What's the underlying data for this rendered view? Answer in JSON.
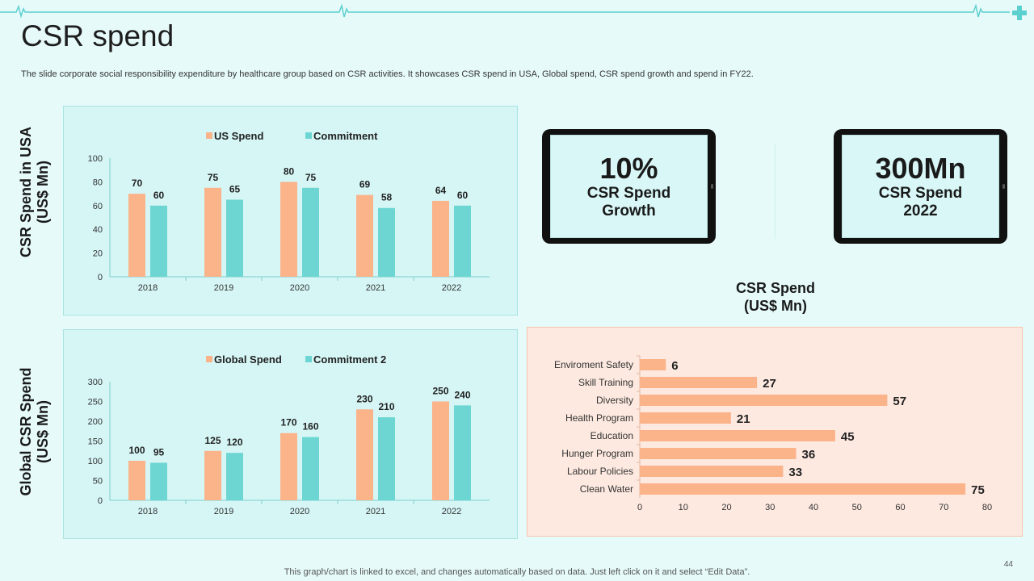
{
  "header": {
    "title": "CSR spend",
    "subtitle": "The slide corporate social responsibility expenditure by healthcare group based on CSR activities. It showcases CSR spend in USA, Global spend, CSR spend growth and spend in FY22."
  },
  "colors": {
    "accent_teal": "#6ed6d2",
    "accent_orange": "#fbb38a",
    "panel_teal": "#d6f6f6",
    "panel_peach": "#fde9e0",
    "deco_line": "#5ccfcf"
  },
  "icons": {
    "header_decoration": "heartbeat-line-icon",
    "corner": "medical-cross-icon"
  },
  "kpis": [
    {
      "value": "10%",
      "label_line1": "CSR Spend",
      "label_line2": "Growth"
    },
    {
      "value": "300Mn",
      "label_line1": "CSR Spend",
      "label_line2": "2022"
    }
  ],
  "side_labels": {
    "usa_line1": "CSR Spend in USA",
    "usa_line2": "(US$ Mn)",
    "global_line1": "Global CSR Spend",
    "global_line2": "(US$ Mn)"
  },
  "bar_chart_title": {
    "line1": "CSR Spend",
    "line2": "(US$ Mn)"
  },
  "chart_data": [
    {
      "type": "bar",
      "title": "CSR Spend in USA (US$ Mn)",
      "categories": [
        "2018",
        "2019",
        "2020",
        "2021",
        "2022"
      ],
      "series": [
        {
          "name": "US Spend",
          "values": [
            70,
            75,
            80,
            69,
            64
          ]
        },
        {
          "name": "Commitment",
          "values": [
            60,
            65,
            75,
            58,
            60
          ]
        }
      ],
      "yticks": [
        0,
        20,
        40,
        60,
        80,
        100
      ],
      "ylim": [
        0,
        100
      ],
      "legend": "top-center",
      "grid": false
    },
    {
      "type": "bar",
      "title": "Global CSR Spend (US$ Mn)",
      "categories": [
        "2018",
        "2019",
        "2020",
        "2021",
        "2022"
      ],
      "series": [
        {
          "name": "Global Spend",
          "values": [
            100,
            125,
            170,
            230,
            250
          ]
        },
        {
          "name": "Commitment 2",
          "values": [
            95,
            120,
            160,
            210,
            240
          ]
        }
      ],
      "yticks": [
        0,
        50,
        100,
        150,
        200,
        250,
        300
      ],
      "ylim": [
        0,
        300
      ],
      "legend": "top-center",
      "grid": false
    },
    {
      "type": "bar",
      "orientation": "horizontal",
      "title": "CSR Spend (US$ Mn)",
      "categories": [
        "Enviroment Safety",
        "Skill Training",
        "Diversity",
        "Health Program",
        "Education",
        "Hunger Program",
        "Labour Policies",
        "Clean Water"
      ],
      "values": [
        6,
        27,
        57,
        21,
        45,
        36,
        33,
        75
      ],
      "xticks": [
        0,
        10,
        20,
        30,
        40,
        50,
        60,
        70,
        80
      ],
      "xlim": [
        0,
        80
      ],
      "grid": false
    }
  ],
  "footer": {
    "note": "This graph/chart is linked to excel,  and changes automatically based on data. Just left click on it and select “Edit Data”.",
    "page_number": "44"
  }
}
